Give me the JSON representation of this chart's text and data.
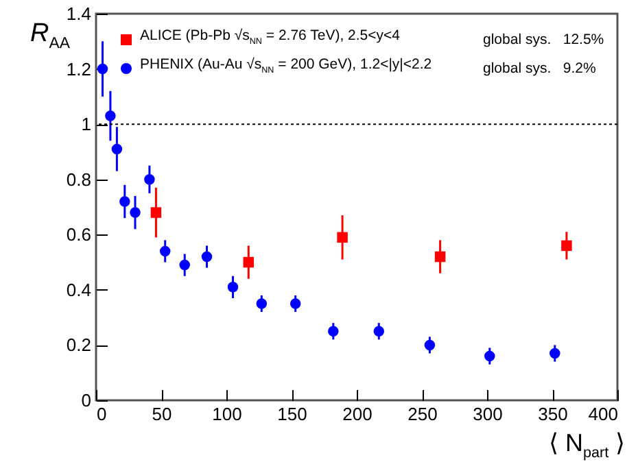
{
  "chart_data": {
    "type": "scatter",
    "ylabel": "R$_{AA}$",
    "xlabel": "⟨ N$_{part}$ ⟩",
    "xlim": [
      0,
      400
    ],
    "xticks": [
      0,
      50,
      100,
      150,
      200,
      250,
      300,
      350,
      400
    ],
    "ylim": [
      0,
      1.4
    ],
    "yticks": [
      0,
      0.2,
      0.4,
      0.6,
      0.8,
      1,
      1.2,
      1.4
    ],
    "legend": "top",
    "series": [
      {
        "name": "ALICE (Pb-Pb √s$_{NN}$ = 2.76 TeV), 2.5<y<4",
        "color": "#ff0000",
        "marker": "square",
        "x": [
          46,
          117,
          189,
          264,
          361
        ],
        "values": [
          0.68,
          0.5,
          0.59,
          0.52,
          0.56
        ],
        "errors": [
          0.09,
          0.06,
          0.08,
          0.06,
          0.05
        ]
      },
      {
        "name": "PHENIX (Au-Au √s$_{NN}$ = 200 GeV), 1.2<|y|<2.2",
        "color": "#0000ff",
        "marker": "circle",
        "x": [
          5,
          11,
          16,
          22,
          30,
          41,
          53,
          68,
          85,
          105,
          127,
          153,
          182,
          217,
          256,
          302,
          352
        ],
        "values": [
          1.2,
          1.03,
          0.91,
          0.72,
          0.68,
          0.8,
          0.54,
          0.49,
          0.52,
          0.41,
          0.35,
          0.35,
          0.25,
          0.25,
          0.2,
          0.16,
          0.17
        ],
        "errors": [
          0.1,
          0.09,
          0.08,
          0.06,
          0.06,
          0.05,
          0.04,
          0.04,
          0.04,
          0.04,
          0.03,
          0.03,
          0.03,
          0.03,
          0.03,
          0.03,
          0.03
        ]
      }
    ],
    "annotations": [
      "global sys.   12.5%",
      "global sys.   9.2%"
    ],
    "ref_lines": [
      {
        "axis": "y",
        "value": 1,
        "line_style": "dotted",
        "color": "#000000"
      }
    ]
  }
}
